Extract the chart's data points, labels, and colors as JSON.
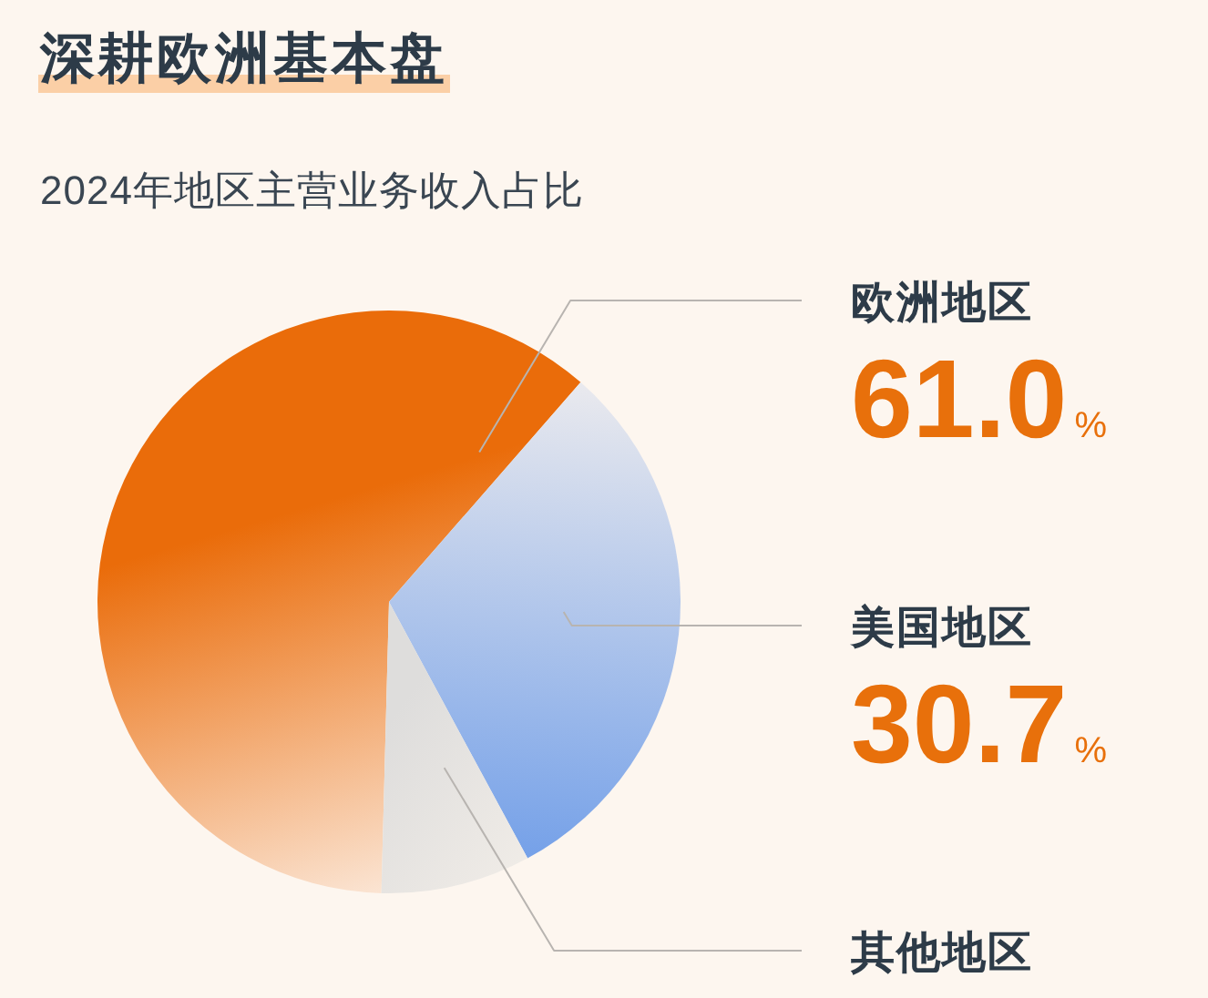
{
  "chart_data": {
    "type": "pie",
    "title": "深耕欧洲基本盘",
    "subtitle": "2024年地区主营业务收入占比",
    "categories": [
      "欧洲地区",
      "美国地区",
      "其他地区"
    ],
    "values": [
      61.0,
      30.7,
      8.3
    ],
    "colors": [
      "#ea6c0a",
      "#6f9de8",
      "#d9d9d9"
    ],
    "value_labels": [
      "61.0%",
      "30.7%",
      null
    ]
  }
}
